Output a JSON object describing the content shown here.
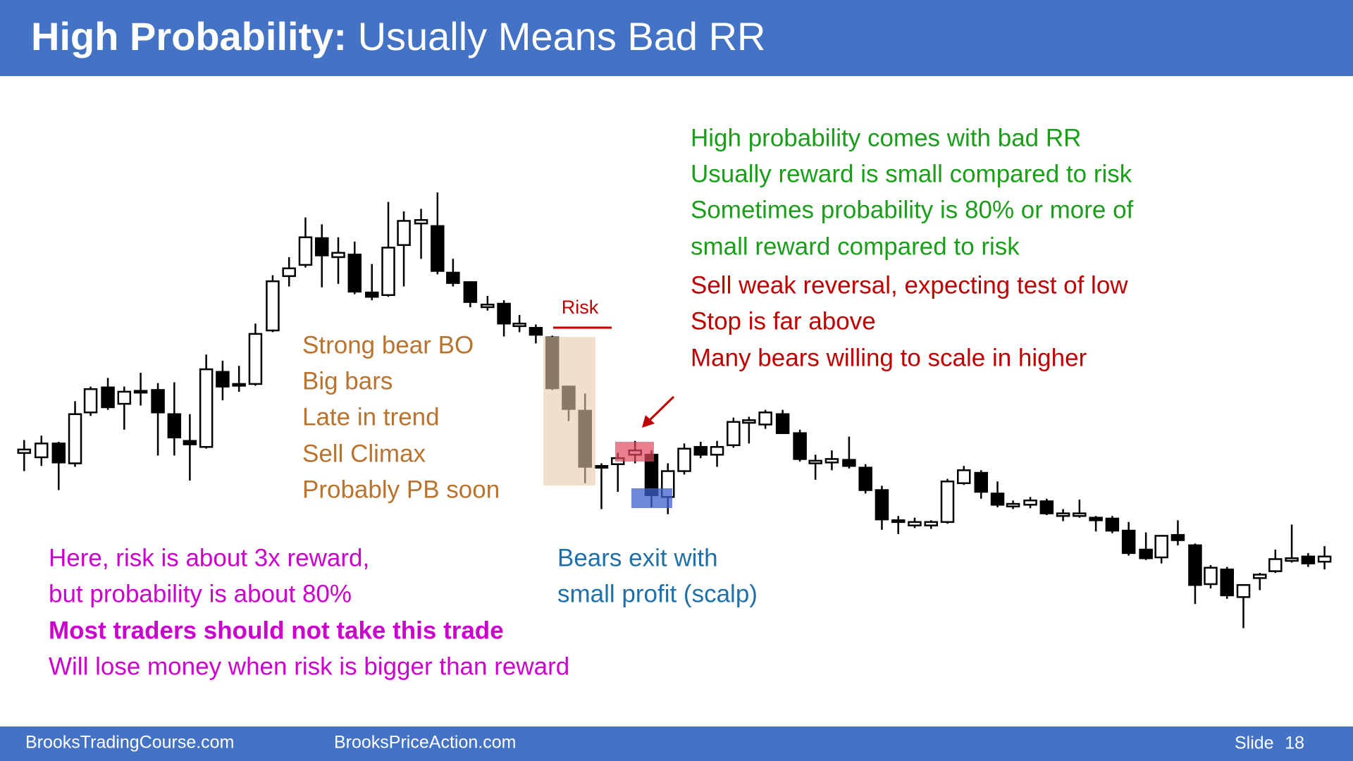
{
  "header": {
    "title_bold": "High Probability:",
    "title_rest": "Usually Means Bad RR"
  },
  "green_notes": [
    "High probability comes with bad RR",
    "Usually reward is small compared to risk",
    "Sometimes probability is 80% or more of",
    "small reward compared to risk"
  ],
  "red_notes": [
    "Sell weak reversal, expecting test of low",
    "Stop is far above",
    "Many bears willing to scale in higher"
  ],
  "brown_notes": [
    "Strong bear BO",
    "Big bars",
    "Late in trend",
    "Sell Climax",
    "Probably PB soon"
  ],
  "magenta_notes": [
    "Here, risk is about 3x reward,",
    "but probability is about 80%",
    "Most traders should not take this trade",
    "Will lose money when risk is bigger than reward"
  ],
  "blue_notes": [
    "Bears exit with",
    "small profit (scalp)"
  ],
  "risk_label": "Risk",
  "footer": {
    "left": "BrooksTradingCourse.com",
    "center": "BrooksPriceAction.com",
    "slide_label": "Slide",
    "slide_number": 18
  }
}
